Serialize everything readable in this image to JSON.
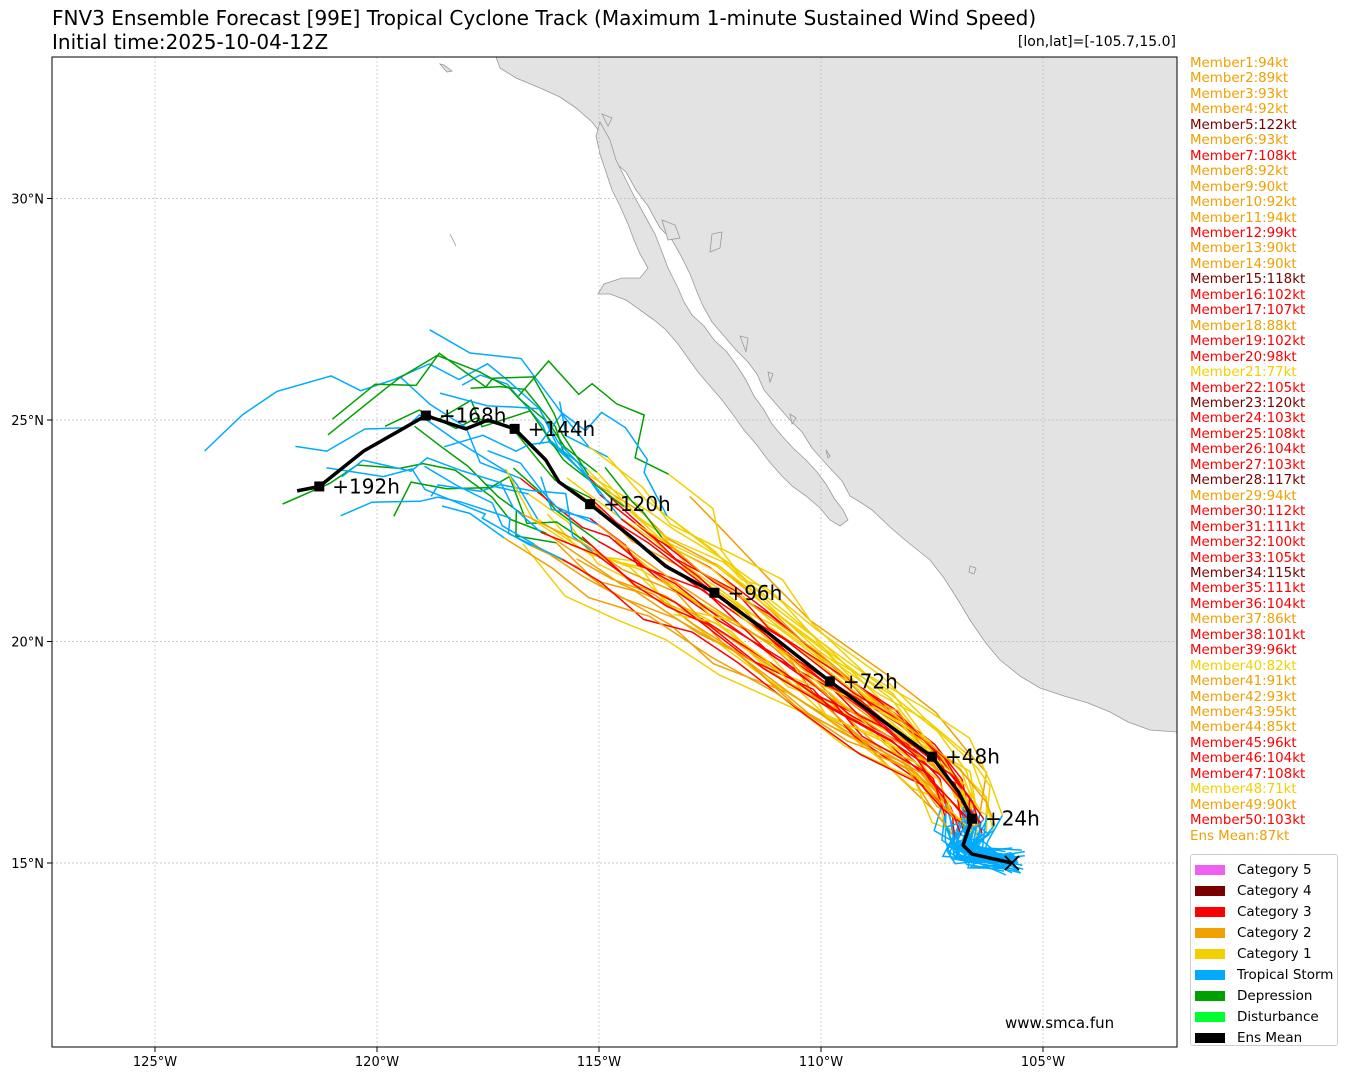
{
  "title": {
    "line1": "FNV3 Ensemble Forecast [99E] Tropical Cyclone Track (Maximum 1-minute Sustained Wind Speed)",
    "line2": "Initial time:2025-10-04-12Z",
    "coordinate": "[lon,lat]=[-105.7,15.0]"
  },
  "map": {
    "lon_range": [
      -127.3,
      -102.0
    ],
    "lat_range": [
      11.0,
      33.3
    ],
    "lon_ticks": [
      {
        "value": -125,
        "label": "125°W"
      },
      {
        "value": -120,
        "label": "120°W"
      },
      {
        "value": -115,
        "label": "115°W"
      },
      {
        "value": -110,
        "label": "110°W"
      },
      {
        "value": -105,
        "label": "105°W"
      }
    ],
    "lat_ticks": [
      {
        "value": 15,
        "label": "15°N"
      },
      {
        "value": 20,
        "label": "20°N"
      },
      {
        "value": 25,
        "label": "25°N"
      },
      {
        "value": 30,
        "label": "30°N"
      }
    ],
    "grid": true,
    "land_color": "#e3e3e3",
    "watermark": "www.smca.fun",
    "start_point": {
      "lon": -105.7,
      "lat": 15.0
    }
  },
  "ensemble_mean": {
    "track": [
      [
        -105.7,
        15.0
      ],
      [
        -106.6,
        15.2
      ],
      [
        -106.8,
        15.4
      ],
      [
        -106.6,
        16.0
      ],
      [
        -106.9,
        16.6
      ],
      [
        -107.5,
        17.4
      ],
      [
        -108.6,
        18.2
      ],
      [
        -109.8,
        19.1
      ],
      [
        -111.2,
        20.2
      ],
      [
        -112.4,
        21.1
      ],
      [
        -113.5,
        21.7
      ],
      [
        -114.2,
        22.3
      ],
      [
        -115.2,
        23.1
      ],
      [
        -115.9,
        23.6
      ],
      [
        -116.2,
        24.1
      ],
      [
        -116.9,
        24.8
      ],
      [
        -117.5,
        25.0
      ],
      [
        -118.0,
        24.8
      ],
      [
        -118.9,
        25.1
      ],
      [
        -119.6,
        24.7
      ],
      [
        -120.3,
        24.3
      ],
      [
        -121.3,
        23.5
      ],
      [
        -121.8,
        23.4
      ]
    ],
    "markers": [
      {
        "lon": -106.6,
        "lat": 16.0,
        "label": "+24h"
      },
      {
        "lon": -107.5,
        "lat": 17.4,
        "label": "+48h"
      },
      {
        "lon": -109.8,
        "lat": 19.1,
        "label": "+72h"
      },
      {
        "lon": -112.4,
        "lat": 21.1,
        "label": "+96h"
      },
      {
        "lon": -115.2,
        "lat": 23.1,
        "label": "+120h"
      },
      {
        "lon": -116.9,
        "lat": 24.8,
        "label": "+144h"
      },
      {
        "lon": -118.9,
        "lat": 25.1,
        "label": "+168h"
      },
      {
        "lon": -121.3,
        "lat": 23.5,
        "label": "+192h"
      }
    ]
  },
  "members": [
    {
      "label": "Member1:94kt",
      "color": "#f0a000"
    },
    {
      "label": "Member2:89kt",
      "color": "#f0a000"
    },
    {
      "label": "Member3:93kt",
      "color": "#f0a000"
    },
    {
      "label": "Member4:92kt",
      "color": "#f0a000"
    },
    {
      "label": "Member5:122kt",
      "color": "#7a0000"
    },
    {
      "label": "Member6:93kt",
      "color": "#f0a000"
    },
    {
      "label": "Member7:108kt",
      "color": "#ff0000"
    },
    {
      "label": "Member8:92kt",
      "color": "#f0a000"
    },
    {
      "label": "Member9:90kt",
      "color": "#f0a000"
    },
    {
      "label": "Member10:92kt",
      "color": "#f0a000"
    },
    {
      "label": "Member11:94kt",
      "color": "#f0a000"
    },
    {
      "label": "Member12:99kt",
      "color": "#ff0000"
    },
    {
      "label": "Member13:90kt",
      "color": "#f0a000"
    },
    {
      "label": "Member14:90kt",
      "color": "#f0a000"
    },
    {
      "label": "Member15:118kt",
      "color": "#7a0000"
    },
    {
      "label": "Member16:102kt",
      "color": "#ff0000"
    },
    {
      "label": "Member17:107kt",
      "color": "#ff0000"
    },
    {
      "label": "Member18:88kt",
      "color": "#f0a000"
    },
    {
      "label": "Member19:102kt",
      "color": "#ff0000"
    },
    {
      "label": "Member20:98kt",
      "color": "#ff0000"
    },
    {
      "label": "Member21:77kt",
      "color": "#f2d000"
    },
    {
      "label": "Member22:105kt",
      "color": "#ff0000"
    },
    {
      "label": "Member23:120kt",
      "color": "#7a0000"
    },
    {
      "label": "Member24:103kt",
      "color": "#ff0000"
    },
    {
      "label": "Member25:108kt",
      "color": "#ff0000"
    },
    {
      "label": "Member26:104kt",
      "color": "#ff0000"
    },
    {
      "label": "Member27:103kt",
      "color": "#ff0000"
    },
    {
      "label": "Member28:117kt",
      "color": "#7a0000"
    },
    {
      "label": "Member29:94kt",
      "color": "#f0a000"
    },
    {
      "label": "Member30:112kt",
      "color": "#ff0000"
    },
    {
      "label": "Member31:111kt",
      "color": "#ff0000"
    },
    {
      "label": "Member32:100kt",
      "color": "#ff0000"
    },
    {
      "label": "Member33:105kt",
      "color": "#ff0000"
    },
    {
      "label": "Member34:115kt",
      "color": "#7a0000"
    },
    {
      "label": "Member35:111kt",
      "color": "#ff0000"
    },
    {
      "label": "Member36:104kt",
      "color": "#ff0000"
    },
    {
      "label": "Member37:86kt",
      "color": "#f0a000"
    },
    {
      "label": "Member38:101kt",
      "color": "#ff0000"
    },
    {
      "label": "Member39:96kt",
      "color": "#ff0000"
    },
    {
      "label": "Member40:82kt",
      "color": "#f2d000"
    },
    {
      "label": "Member41:91kt",
      "color": "#f0a000"
    },
    {
      "label": "Member42:93kt",
      "color": "#f0a000"
    },
    {
      "label": "Member43:95kt",
      "color": "#f0a000"
    },
    {
      "label": "Member44:85kt",
      "color": "#f0a000"
    },
    {
      "label": "Member45:96kt",
      "color": "#ff0000"
    },
    {
      "label": "Member46:104kt",
      "color": "#ff0000"
    },
    {
      "label": "Member47:108kt",
      "color": "#ff0000"
    },
    {
      "label": "Member48:71kt",
      "color": "#f2d000"
    },
    {
      "label": "Member49:90kt",
      "color": "#f0a000"
    },
    {
      "label": "Member50:103kt",
      "color": "#ff0000"
    },
    {
      "label": "Ens Mean:87kt",
      "color": "#f0a000"
    }
  ],
  "legend": [
    {
      "label": "Category 5",
      "color": "#f060f0"
    },
    {
      "label": "Category 4",
      "color": "#7a0000"
    },
    {
      "label": "Category 3",
      "color": "#ff0000"
    },
    {
      "label": "Category 2",
      "color": "#f0a000"
    },
    {
      "label": "Category 1",
      "color": "#f2d000"
    },
    {
      "label": "Tropical Storm",
      "color": "#00aaff"
    },
    {
      "label": "Depression",
      "color": "#00a000"
    },
    {
      "label": "Disturbance",
      "color": "#00ff30"
    },
    {
      "label": "Ens Mean",
      "color": "#000000"
    }
  ]
}
